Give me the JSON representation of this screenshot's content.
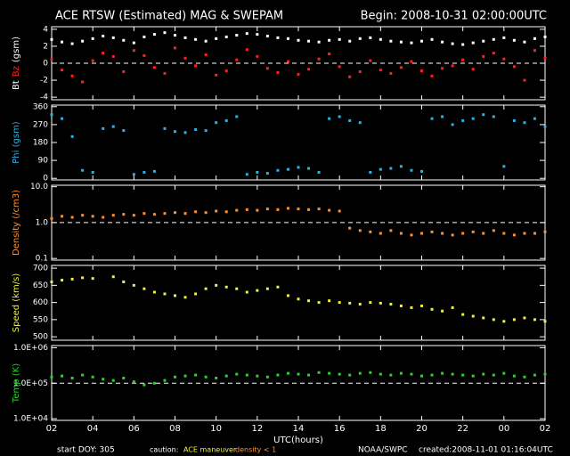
{
  "header": {
    "title": "ACE RTSW (Estimated) MAG & SWEPAM",
    "begin": "Begin: 2008-10-31 02:00:00UTC"
  },
  "footer": {
    "start": "start DOY: 305",
    "caution": "caution:",
    "maneuver": "ACE maneuver",
    "density": "density < 1",
    "credit": "NOAA/SWPC",
    "created": "created:2008-11-01 01:16:04UTC"
  },
  "chart_data": [
    {
      "type": "scatter",
      "ylabel": [
        {
          "text": "Bt",
          "color": "#ffffff"
        },
        {
          "text": "Bz",
          "color": "#ff2020"
        },
        {
          "text": "(gsm)",
          "color": "#ffffff"
        }
      ],
      "xlim": [
        0,
        24
      ],
      "ylim": [
        -4.3,
        4.3
      ],
      "yticks": [
        -4,
        -2,
        0,
        2,
        4
      ],
      "log": false,
      "reference_line": 0,
      "x": [
        0,
        0.5,
        1,
        1.5,
        2,
        2.5,
        3,
        3.5,
        4,
        4.5,
        5,
        5.5,
        6,
        6.5,
        7,
        7.5,
        8,
        8.5,
        9,
        9.5,
        10,
        10.5,
        11,
        11.5,
        12,
        12.5,
        13,
        13.5,
        14,
        14.5,
        15,
        15.5,
        16,
        16.5,
        17,
        17.5,
        18,
        18.5,
        19,
        19.5,
        20,
        20.5,
        21,
        21.5,
        22,
        22.5,
        23,
        23.5,
        24
      ],
      "series": [
        {
          "name": "Bt",
          "color": "#ffffff",
          "values": [
            2.8,
            2.5,
            2.3,
            2.6,
            2.9,
            3.2,
            3.0,
            2.7,
            2.4,
            3.1,
            3.4,
            3.6,
            3.3,
            3.0,
            2.8,
            2.6,
            2.9,
            3.1,
            3.3,
            3.5,
            3.4,
            3.2,
            3.0,
            2.9,
            2.7,
            2.6,
            2.5,
            2.7,
            2.8,
            2.6,
            2.9,
            3.0,
            2.8,
            2.6,
            2.5,
            2.4,
            2.6,
            2.8,
            2.5,
            2.3,
            2.2,
            2.4,
            2.6,
            2.8,
            3.0,
            2.7,
            2.5,
            2.9,
            3.1
          ]
        },
        {
          "name": "Bz",
          "color": "#ff2020",
          "values": [
            0.5,
            -0.8,
            -1.5,
            -2.2,
            0.3,
            1.2,
            0.8,
            -1.0,
            1.5,
            0.9,
            -0.5,
            -1.2,
            1.8,
            0.6,
            -0.3,
            1.0,
            -1.4,
            -0.9,
            0.4,
            1.6,
            0.8,
            -0.6,
            -1.1,
            0.2,
            -1.3,
            -0.7,
            0.5,
            1.1,
            -0.4,
            -1.6,
            -1.0,
            0.3,
            -0.8,
            -1.2,
            -0.5,
            0.2,
            -0.9,
            -1.5,
            -0.6,
            -0.3,
            0.4,
            -0.7,
            0.8,
            1.2,
            0.5,
            -0.4,
            -2.0,
            1.5,
            0.6
          ]
        }
      ]
    },
    {
      "type": "scatter",
      "ylabel": [
        {
          "text": "Phi (gsm)",
          "color": "#30b0e0"
        }
      ],
      "xlim": [
        0,
        24
      ],
      "ylim": [
        -8,
        368
      ],
      "yticks": [
        0,
        90,
        180,
        270,
        360
      ],
      "log": false,
      "x": [
        0,
        0.5,
        1,
        1.5,
        2,
        2.5,
        3,
        3.5,
        4,
        4.5,
        5,
        5.5,
        6,
        6.5,
        7,
        7.5,
        8,
        8.5,
        9,
        9.5,
        10,
        10.5,
        11,
        11.5,
        12,
        12.5,
        13,
        13.5,
        14,
        14.5,
        15,
        15.5,
        16,
        16.5,
        17,
        17.5,
        18,
        18.5,
        19,
        19.5,
        20,
        20.5,
        21,
        21.5,
        22,
        22.5,
        23,
        23.5,
        24
      ],
      "series": [
        {
          "name": "Phi",
          "color": "#30b0e0",
          "values": [
            320,
            300,
            210,
            40,
            30,
            250,
            260,
            240,
            20,
            30,
            35,
            250,
            235,
            230,
            245,
            240,
            280,
            290,
            310,
            20,
            30,
            25,
            40,
            45,
            55,
            50,
            30,
            300,
            310,
            290,
            280,
            30,
            45,
            50,
            60,
            40,
            35,
            300,
            310,
            270,
            290,
            300,
            320,
            310,
            60,
            290,
            280,
            300,
            260
          ]
        }
      ]
    },
    {
      "type": "scatter",
      "ylabel": [
        {
          "text": "Density (/cm3)",
          "color": "#ff9030"
        }
      ],
      "xlim": [
        0,
        24
      ],
      "ylim": [
        0.09,
        11
      ],
      "yticks": [
        0.1,
        {
          "value": 1,
          "label": "1.0"
        },
        {
          "value": 10,
          "label": "10.0"
        }
      ],
      "log": true,
      "reference_line": 1,
      "x": [
        0,
        0.5,
        1,
        1.5,
        2,
        2.5,
        3,
        3.5,
        4,
        4.5,
        5,
        5.5,
        6,
        6.5,
        7,
        7.5,
        8,
        8.5,
        9,
        9.5,
        10,
        10.5,
        11,
        11.5,
        12,
        12.5,
        13,
        13.5,
        14,
        14.5,
        15,
        15.5,
        16,
        16.5,
        17,
        17.5,
        18,
        18.5,
        19,
        19.5,
        20,
        20.5,
        21,
        21.5,
        22,
        22.5,
        23,
        23.5,
        24
      ],
      "series": [
        {
          "name": "Density",
          "color": "#ff9030",
          "values": [
            1.3,
            1.5,
            1.4,
            1.6,
            1.5,
            1.4,
            1.6,
            1.7,
            1.6,
            1.8,
            1.7,
            1.8,
            1.9,
            1.8,
            2.0,
            1.9,
            2.1,
            2.0,
            2.2,
            2.3,
            2.2,
            2.4,
            2.3,
            2.5,
            2.4,
            2.3,
            2.4,
            2.2,
            2.1,
            0.7,
            0.6,
            0.55,
            0.5,
            0.6,
            0.5,
            0.45,
            0.5,
            0.55,
            0.5,
            0.45,
            0.5,
            0.55,
            0.5,
            0.6,
            0.5,
            0.45,
            0.5,
            0.5,
            0.55
          ]
        }
      ]
    },
    {
      "type": "scatter",
      "ylabel": [
        {
          "text": "Speed (km/s)",
          "color": "#f0f040"
        }
      ],
      "xlim": [
        0,
        24
      ],
      "ylim": [
        490,
        708
      ],
      "yticks": [
        500,
        550,
        600,
        650,
        700
      ],
      "log": false,
      "x": [
        0,
        0.5,
        1,
        1.5,
        2,
        2.5,
        3,
        3.5,
        4,
        4.5,
        5,
        5.5,
        6,
        6.5,
        7,
        7.5,
        8,
        8.5,
        9,
        9.5,
        10,
        10.5,
        11,
        11.5,
        12,
        12.5,
        13,
        13.5,
        14,
        14.5,
        15,
        15.5,
        16,
        16.5,
        17,
        17.5,
        18,
        18.5,
        19,
        19.5,
        20,
        20.5,
        21,
        21.5,
        22,
        22.5,
        23,
        23.5,
        24
      ],
      "series": [
        {
          "name": "Speed",
          "color": "#f0f040",
          "values": [
            660,
            665,
            668,
            672,
            670,
            null,
            675,
            660,
            650,
            640,
            630,
            625,
            620,
            615,
            625,
            640,
            650,
            645,
            640,
            630,
            635,
            640,
            645,
            620,
            610,
            605,
            600,
            605,
            600,
            598,
            595,
            600,
            598,
            595,
            590,
            585,
            590,
            580,
            575,
            585,
            565,
            560,
            555,
            550,
            545,
            550,
            555,
            550,
            545
          ]
        }
      ]
    },
    {
      "type": "scatter",
      "ylabel": [
        {
          "text": "Temp (K)",
          "color": "#30d030"
        }
      ],
      "xlim": [
        0,
        24
      ],
      "ylim": [
        9000,
        1150000
      ],
      "yticks": [
        {
          "value": 10000,
          "label": "1.0E+04"
        },
        {
          "value": 100000,
          "label": "1.0E+05"
        },
        {
          "value": 1000000,
          "label": "1.0E+06"
        }
      ],
      "log": true,
      "reference_line": 100000,
      "xlabel": "UTC(hours)",
      "xticks": [
        {
          "value": 0,
          "label": "02"
        },
        {
          "value": 2,
          "label": "04"
        },
        {
          "value": 4,
          "label": "06"
        },
        {
          "value": 6,
          "label": "08"
        },
        {
          "value": 8,
          "label": "10"
        },
        {
          "value": 10,
          "label": "12"
        },
        {
          "value": 12,
          "label": "14"
        },
        {
          "value": 14,
          "label": "16"
        },
        {
          "value": 16,
          "label": "18"
        },
        {
          "value": 18,
          "label": "20"
        },
        {
          "value": 20,
          "label": "22"
        },
        {
          "value": 22,
          "label": "00"
        },
        {
          "value": 24,
          "label": "02"
        }
      ],
      "x": [
        0,
        0.5,
        1,
        1.5,
        2,
        2.5,
        3,
        3.5,
        4,
        4.5,
        5,
        5.5,
        6,
        6.5,
        7,
        7.5,
        8,
        8.5,
        9,
        9.5,
        10,
        10.5,
        11,
        11.5,
        12,
        12.5,
        13,
        13.5,
        14,
        14.5,
        15,
        15.5,
        16,
        16.5,
        17,
        17.5,
        18,
        18.5,
        19,
        19.5,
        20,
        20.5,
        21,
        21.5,
        22,
        22.5,
        23,
        23.5,
        24
      ],
      "series": [
        {
          "name": "Temp",
          "color": "#30d030",
          "values": [
            150000,
            160000,
            140000,
            170000,
            150000,
            130000,
            120000,
            140000,
            110000,
            90000,
            100000,
            120000,
            150000,
            160000,
            170000,
            150000,
            140000,
            160000,
            180000,
            170000,
            160000,
            150000,
            170000,
            190000,
            180000,
            170000,
            200000,
            190000,
            180000,
            170000,
            190000,
            200000,
            180000,
            170000,
            190000,
            180000,
            160000,
            170000,
            190000,
            180000,
            170000,
            160000,
            180000,
            170000,
            190000,
            160000,
            150000,
            170000,
            180000
          ]
        }
      ]
    }
  ]
}
